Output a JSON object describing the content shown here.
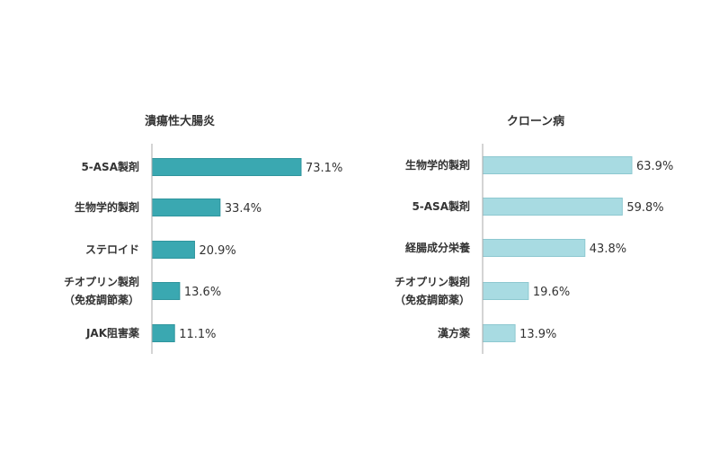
{
  "chart_data": [
    {
      "type": "bar",
      "orientation": "horizontal",
      "title": "潰瘍性大腸炎",
      "categories": [
        [
          "5-ASA製剤"
        ],
        [
          "生物学的製剤"
        ],
        [
          "ステロイド"
        ],
        [
          "チオプリン製剤",
          "（免疫調節薬）"
        ],
        [
          "JAK阻害薬"
        ]
      ],
      "values": [
        73.1,
        33.4,
        20.9,
        13.6,
        11.1
      ],
      "value_labels": [
        "73.1%",
        "33.4%",
        "20.9%",
        "13.6%",
        "11.1%"
      ],
      "xlim": [
        0,
        100
      ],
      "color": "#3aa8b1",
      "grid": false,
      "legend": "none"
    },
    {
      "type": "bar",
      "orientation": "horizontal",
      "title": "クローン病",
      "categories": [
        [
          "生物学的製剤"
        ],
        [
          "5-ASA製剤"
        ],
        [
          "経腸成分栄養"
        ],
        [
          "チオプリン製剤",
          "（免疫調節薬）"
        ],
        [
          "漢方薬"
        ]
      ],
      "values": [
        63.9,
        59.8,
        43.8,
        19.6,
        13.9
      ],
      "value_labels": [
        "63.9%",
        "59.8%",
        "43.8%",
        "19.6%",
        "13.9%"
      ],
      "xlim": [
        0,
        100
      ],
      "color": "#a8dbe2",
      "grid": false,
      "legend": "none"
    }
  ]
}
